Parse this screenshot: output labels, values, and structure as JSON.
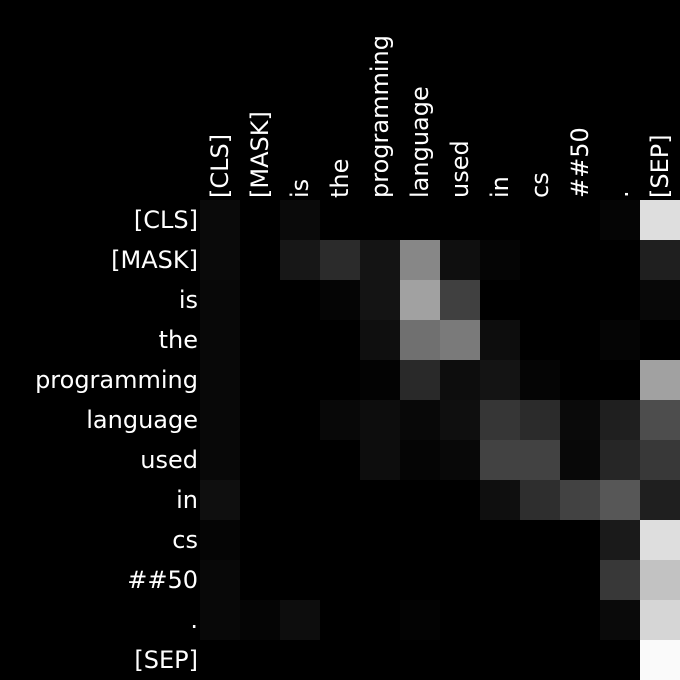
{
  "chart_data": {
    "type": "heatmap",
    "title": "",
    "xlabel": "",
    "ylabel": "",
    "x_tokens": [
      "[CLS]",
      "[MASK]",
      "is",
      "the",
      "programming",
      "language",
      "used",
      "in",
      "cs",
      "##50",
      ".",
      "[SEP]"
    ],
    "y_tokens": [
      "[CLS]",
      "[MASK]",
      "is",
      "the",
      "programming",
      "language",
      "used",
      "in",
      "cs",
      "##50",
      ".",
      "[SEP]"
    ],
    "colormap": "grayscale",
    "value_range": [
      0,
      1
    ],
    "values": [
      [
        0.04,
        0.0,
        0.04,
        0.0,
        0.0,
        0.0,
        0.0,
        0.0,
        0.0,
        0.0,
        0.02,
        0.87
      ],
      [
        0.04,
        0.0,
        0.09,
        0.17,
        0.08,
        0.53,
        0.06,
        0.02,
        0.0,
        0.0,
        0.0,
        0.12
      ],
      [
        0.03,
        0.0,
        0.0,
        0.02,
        0.08,
        0.63,
        0.25,
        0.0,
        0.0,
        0.0,
        0.0,
        0.03
      ],
      [
        0.03,
        0.0,
        0.0,
        0.0,
        0.06,
        0.44,
        0.48,
        0.05,
        0.0,
        0.0,
        0.02,
        0.0
      ],
      [
        0.03,
        0.0,
        0.0,
        0.0,
        0.01,
        0.16,
        0.05,
        0.08,
        0.02,
        0.0,
        0.0,
        0.63
      ],
      [
        0.03,
        0.0,
        0.0,
        0.03,
        0.05,
        0.03,
        0.06,
        0.21,
        0.17,
        0.04,
        0.12,
        0.3
      ],
      [
        0.03,
        0.0,
        0.0,
        0.0,
        0.05,
        0.02,
        0.03,
        0.26,
        0.26,
        0.03,
        0.15,
        0.22
      ],
      [
        0.06,
        0.0,
        0.0,
        0.0,
        0.0,
        0.0,
        0.0,
        0.06,
        0.18,
        0.26,
        0.34,
        0.12
      ],
      [
        0.02,
        0.0,
        0.0,
        0.0,
        0.0,
        0.0,
        0.0,
        0.0,
        0.0,
        0.0,
        0.1,
        0.87
      ],
      [
        0.03,
        0.0,
        0.0,
        0.0,
        0.0,
        0.0,
        0.0,
        0.0,
        0.0,
        0.0,
        0.22,
        0.76
      ],
      [
        0.03,
        0.02,
        0.05,
        0.0,
        0.0,
        0.01,
        0.0,
        0.0,
        0.0,
        0.0,
        0.04,
        0.84
      ],
      [
        0.0,
        0.0,
        0.0,
        0.0,
        0.0,
        0.0,
        0.0,
        0.0,
        0.0,
        0.0,
        0.0,
        0.98
      ]
    ],
    "grid": false,
    "legend": "none"
  }
}
